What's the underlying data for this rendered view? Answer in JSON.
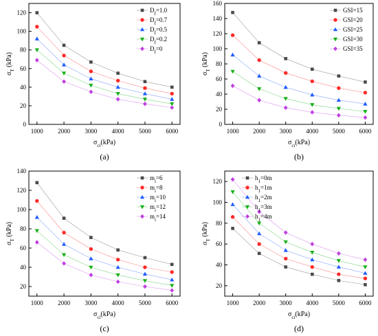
{
  "chart_data": [
    {
      "type": "line",
      "panel_label": "(a)",
      "xlabel_main": "σ",
      "xlabel_sub": "ci",
      "xlabel_unit": "(kPa)",
      "ylabel_main": "σ",
      "ylabel_sub": "T",
      "ylabel_unit": " (kPa)",
      "xlim": [
        700,
        6300
      ],
      "ylim": [
        0,
        130
      ],
      "xticks": [
        1000,
        2000,
        3000,
        4000,
        5000,
        6000
      ],
      "yticks": [
        0,
        20,
        40,
        60,
        80,
        100,
        120
      ],
      "x": [
        1000,
        2000,
        3000,
        4000,
        5000,
        6000
      ],
      "legend_position": "top-right",
      "series": [
        {
          "label_main": "D",
          "label_sub": "f",
          "label_tail": "=1.0",
          "marker": "square",
          "color": "#4a4a4a",
          "values": [
            120,
            85,
            67,
            55,
            46,
            40
          ]
        },
        {
          "label_main": "D",
          "label_sub": "f",
          "label_tail": "=0.7",
          "marker": "circle",
          "color": "#ff2a2a",
          "values": [
            105,
            74,
            57,
            47,
            39,
            33
          ]
        },
        {
          "label_main": "D",
          "label_sub": "f",
          "label_tail": "=0.5",
          "marker": "triangle-up",
          "color": "#1f5bff",
          "values": [
            92,
            64,
            49,
            40,
            33,
            27
          ]
        },
        {
          "label_main": "D",
          "label_sub": "f",
          "label_tail": "=0.2",
          "marker": "triangle-down",
          "color": "#17b017",
          "values": [
            80,
            55,
            42,
            33,
            27,
            22
          ]
        },
        {
          "label_main": "D",
          "label_sub": "f",
          "label_tail": "=0",
          "marker": "diamond",
          "color": "#c040e0",
          "values": [
            69,
            46,
            35,
            27,
            22,
            18
          ]
        }
      ]
    },
    {
      "type": "line",
      "panel_label": "(b)",
      "xlabel_main": "σ",
      "xlabel_sub": "ci",
      "xlabel_unit": "(kPa)",
      "ylabel_main": "σ",
      "ylabel_sub": "T",
      "ylabel_unit": " (kPa)",
      "xlim": [
        700,
        6300
      ],
      "ylim": [
        0,
        160
      ],
      "xticks": [
        1000,
        2000,
        3000,
        4000,
        5000,
        6000
      ],
      "yticks": [
        0,
        20,
        40,
        60,
        80,
        100,
        120,
        140,
        160
      ],
      "x": [
        1000,
        2000,
        3000,
        4000,
        5000,
        6000
      ],
      "legend_position": "top-right",
      "series": [
        {
          "label_main": "GSI=15",
          "label_sub": "",
          "label_tail": "",
          "marker": "square",
          "color": "#4a4a4a",
          "values": [
            148,
            108,
            87,
            73,
            64,
            56
          ]
        },
        {
          "label_main": "GSI=20",
          "label_sub": "",
          "label_tail": "",
          "marker": "circle",
          "color": "#ff2a2a",
          "values": [
            118,
            85,
            68,
            57,
            48,
            42
          ]
        },
        {
          "label_main": "GSI=25",
          "label_sub": "",
          "label_tail": "",
          "marker": "triangle-up",
          "color": "#1f5bff",
          "values": [
            92,
            64,
            49,
            39,
            32,
            27
          ]
        },
        {
          "label_main": "GSI=30",
          "label_sub": "",
          "label_tail": "",
          "marker": "triangle-down",
          "color": "#17b017",
          "values": [
            70,
            47,
            34,
            26,
            21,
            17
          ]
        },
        {
          "label_main": "GSI=35",
          "label_sub": "",
          "label_tail": "",
          "marker": "diamond",
          "color": "#c040e0",
          "values": [
            51,
            32,
            22,
            16,
            12,
            9
          ]
        }
      ]
    },
    {
      "type": "line",
      "panel_label": "(c)",
      "xlabel_main": "σ",
      "xlabel_sub": "ci",
      "xlabel_unit": "(kPa)",
      "ylabel_main": "σ",
      "ylabel_sub": "T",
      "ylabel_unit": " (kPa)",
      "xlim": [
        700,
        6300
      ],
      "ylim": [
        10,
        140
      ],
      "xticks": [
        1000,
        2000,
        3000,
        4000,
        5000,
        6000
      ],
      "yticks": [
        20,
        40,
        60,
        80,
        100,
        120,
        140
      ],
      "x": [
        1000,
        2000,
        3000,
        4000,
        5000,
        6000
      ],
      "legend_position": "top-right",
      "series": [
        {
          "label_main": "m",
          "label_sub": "i",
          "label_tail": "=6",
          "marker": "square",
          "color": "#4a4a4a",
          "values": [
            128,
            91,
            71,
            58,
            50,
            43
          ]
        },
        {
          "label_main": "m",
          "label_sub": "i",
          "label_tail": "=8",
          "marker": "circle",
          "color": "#ff2a2a",
          "values": [
            109,
            76,
            59,
            48,
            40,
            35
          ]
        },
        {
          "label_main": "m",
          "label_sub": "i",
          "label_tail": "=10",
          "marker": "triangle-up",
          "color": "#1f5bff",
          "values": [
            92,
            64,
            49,
            40,
            33,
            27
          ]
        },
        {
          "label_main": "m",
          "label_sub": "i",
          "label_tail": "=12",
          "marker": "triangle-down",
          "color": "#17b017",
          "values": [
            78,
            53,
            40,
            32,
            26,
            21
          ]
        },
        {
          "label_main": "m",
          "label_sub": "i",
          "label_tail": "=14",
          "marker": "diamond",
          "color": "#c040e0",
          "values": [
            66,
            44,
            32,
            25,
            20,
            16
          ]
        }
      ]
    },
    {
      "type": "line",
      "panel_label": "(d)",
      "xlabel_main": "σ",
      "xlabel_sub": "ci",
      "xlabel_unit": "(kPa)",
      "ylabel_main": "σ",
      "ylabel_sub": "T",
      "ylabel_unit": " (kPa)",
      "xlim": [
        700,
        6300
      ],
      "ylim": [
        10,
        130
      ],
      "xticks": [
        1000,
        2000,
        3000,
        4000,
        5000,
        6000
      ],
      "yticks": [
        20,
        40,
        60,
        80,
        100,
        120
      ],
      "x": [
        1000,
        2000,
        3000,
        4000,
        5000,
        6000
      ],
      "legend_position": "top-left",
      "series": [
        {
          "label_main": "h",
          "label_sub": "1",
          "label_tail": "=0m",
          "marker": "square",
          "color": "#4a4a4a",
          "values": [
            75,
            51,
            38,
            31,
            25,
            21
          ]
        },
        {
          "label_main": "h",
          "label_sub": "1",
          "label_tail": "=1m",
          "marker": "circle",
          "color": "#ff2a2a",
          "values": [
            86,
            60,
            46,
            38,
            31,
            27
          ]
        },
        {
          "label_main": "h",
          "label_sub": "1",
          "label_tail": "=2m",
          "marker": "triangle-up",
          "color": "#1f5bff",
          "values": [
            98,
            70,
            54,
            45,
            38,
            32
          ]
        },
        {
          "label_main": "h",
          "label_sub": "1",
          "label_tail": "=3m",
          "marker": "triangle-down",
          "color": "#17b017",
          "values": [
            110,
            80,
            62,
            52,
            44,
            38
          ]
        },
        {
          "label_main": "h",
          "label_sub": "1",
          "label_tail": "=4m",
          "marker": "diamond",
          "color": "#c040e0",
          "values": [
            122,
            91,
            71,
            60,
            51,
            45
          ]
        }
      ]
    }
  ]
}
